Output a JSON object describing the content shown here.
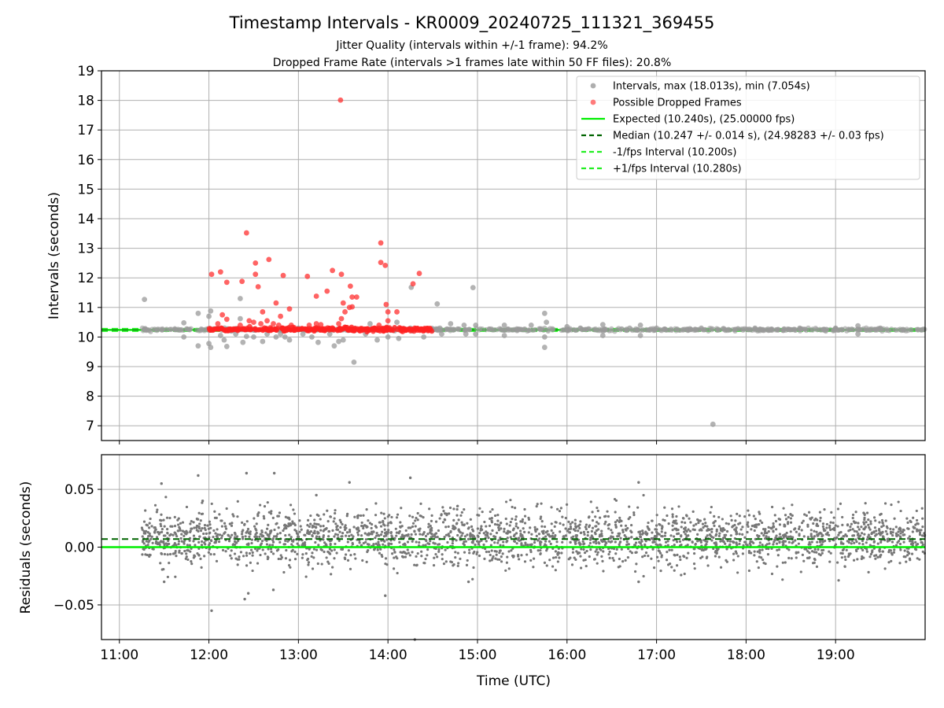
{
  "header": {
    "title": "Timestamp Intervals - KR0009_20240725_111321_369455",
    "subtitle1": "Jitter Quality (intervals within +/-1 frame): 94.2%",
    "subtitle2": "Dropped Frame Rate (intervals >1 frames late within 50 FF files): 20.8%"
  },
  "chart_data": [
    {
      "type": "scatter",
      "ylabel": "Intervals (seconds)",
      "xlabel": "",
      "x_unit": "UTC hours",
      "xlim": [
        10.8,
        20.0
      ],
      "ylim": [
        6.5,
        19.0
      ],
      "yticks": [
        7,
        8,
        9,
        10,
        11,
        12,
        13,
        14,
        15,
        16,
        17,
        18,
        19
      ],
      "grid": true,
      "legend_position": "top-right",
      "legend": [
        {
          "label": "Intervals, max (18.013s), min (7.054s)",
          "kind": "marker",
          "color": "#9a9a9a"
        },
        {
          "label": "Possible Dropped Frames",
          "kind": "marker",
          "color": "#ff5a5a"
        },
        {
          "label": "Expected (10.240s), (25.00000 fps)",
          "kind": "line-solid",
          "color": "#00ee00"
        },
        {
          "label": "Median (10.247 +/- 0.014 s), (24.98283 +/- 0.03 fps)",
          "kind": "line-dashed",
          "color": "#006400"
        },
        {
          "label": "-1/fps Interval (10.200s)",
          "kind": "line-dashed",
          "color": "#22ee22"
        },
        {
          "label": "+1/fps Interval (10.280s)",
          "kind": "line-dashed",
          "color": "#22ee22"
        }
      ],
      "reference_lines": {
        "expected": 10.24,
        "median": 10.247,
        "minus_1fps": 10.2,
        "plus_1fps": 10.28
      },
      "series": [
        {
          "name": "Intervals, max (18.013s), min (7.054s)",
          "color": "#9a9a9a",
          "points": [
            [
              11.28,
              11.27
            ],
            [
              11.72,
              10.48
            ],
            [
              11.72,
              10.0
            ],
            [
              11.88,
              10.8
            ],
            [
              11.88,
              9.7
            ],
            [
              12.0,
              10.7
            ],
            [
              12.02,
              10.88
            ],
            [
              12.0,
              9.78
            ],
            [
              12.02,
              9.65
            ],
            [
              12.1,
              10.3
            ],
            [
              12.13,
              10.05
            ],
            [
              12.17,
              9.9
            ],
            [
              12.2,
              9.68
            ],
            [
              12.25,
              10.2
            ],
            [
              12.3,
              10.1
            ],
            [
              12.35,
              11.3
            ],
            [
              12.35,
              10.62
            ],
            [
              12.38,
              9.82
            ],
            [
              12.42,
              10.02
            ],
            [
              12.5,
              10.0
            ],
            [
              12.6,
              9.85
            ],
            [
              12.65,
              10.1
            ],
            [
              12.75,
              10.0
            ],
            [
              12.8,
              10.1
            ],
            [
              12.85,
              10.0
            ],
            [
              12.9,
              9.9
            ],
            [
              13.0,
              10.3
            ],
            [
              13.05,
              10.1
            ],
            [
              13.15,
              10.0
            ],
            [
              13.22,
              9.82
            ],
            [
              13.35,
              10.1
            ],
            [
              13.4,
              9.7
            ],
            [
              13.45,
              9.85
            ],
            [
              13.5,
              9.9
            ],
            [
              13.62,
              9.15
            ],
            [
              13.75,
              10.1
            ],
            [
              13.8,
              10.45
            ],
            [
              13.88,
              9.9
            ],
            [
              14.0,
              10.0
            ],
            [
              14.1,
              10.5
            ],
            [
              14.12,
              9.95
            ],
            [
              14.25,
              10.3
            ],
            [
              14.26,
              11.68
            ],
            [
              14.4,
              10.0
            ],
            [
              14.55,
              11.12
            ],
            [
              14.58,
              10.3
            ],
            [
              14.6,
              10.1
            ],
            [
              14.7,
              10.45
            ],
            [
              14.85,
              10.4
            ],
            [
              14.87,
              10.1
            ],
            [
              14.95,
              11.67
            ],
            [
              14.98,
              10.4
            ],
            [
              14.98,
              10.1
            ],
            [
              15.3,
              10.4
            ],
            [
              15.3,
              10.05
            ],
            [
              15.6,
              10.4
            ],
            [
              15.75,
              10.8
            ],
            [
              15.77,
              10.5
            ],
            [
              15.75,
              10.0
            ],
            [
              15.75,
              9.65
            ],
            [
              16.0,
              10.35
            ],
            [
              16.15,
              10.3
            ],
            [
              16.4,
              10.42
            ],
            [
              16.4,
              10.05
            ],
            [
              16.7,
              10.3
            ],
            [
              16.82,
              10.4
            ],
            [
              16.82,
              10.05
            ],
            [
              17.0,
              10.3
            ],
            [
              17.5,
              10.3
            ],
            [
              17.63,
              7.05
            ],
            [
              18.1,
              10.3
            ],
            [
              18.6,
              10.3
            ],
            [
              19.0,
              10.3
            ],
            [
              19.25,
              10.38
            ],
            [
              19.25,
              10.1
            ],
            [
              19.5,
              10.3
            ]
          ]
        },
        {
          "name": "Possible Dropped Frames",
          "color": "#ff2020",
          "points": [
            [
              12.03,
              12.12
            ],
            [
              12.13,
              12.2
            ],
            [
              12.2,
              11.85
            ],
            [
              12.37,
              11.88
            ],
            [
              12.42,
              13.52
            ],
            [
              12.52,
              12.5
            ],
            [
              12.52,
              12.12
            ],
            [
              12.55,
              11.7
            ],
            [
              12.6,
              10.85
            ],
            [
              12.67,
              12.62
            ],
            [
              12.75,
              11.15
            ],
            [
              12.8,
              10.7
            ],
            [
              12.83,
              12.08
            ],
            [
              12.9,
              10.95
            ],
            [
              12.65,
              10.55
            ],
            [
              12.5,
              10.5
            ],
            [
              12.45,
              10.55
            ],
            [
              12.2,
              10.6
            ],
            [
              12.15,
              10.75
            ],
            [
              12.1,
              10.45
            ],
            [
              12.35,
              10.4
            ],
            [
              12.58,
              10.45
            ],
            [
              12.72,
              10.45
            ],
            [
              12.78,
              10.4
            ],
            [
              12.92,
              10.4
            ],
            [
              13.1,
              12.05
            ],
            [
              13.2,
              11.38
            ],
            [
              13.32,
              11.55
            ],
            [
              13.38,
              12.25
            ],
            [
              13.45,
              10.45
            ],
            [
              13.47,
              18.01
            ],
            [
              13.48,
              12.12
            ],
            [
              13.5,
              11.15
            ],
            [
              13.52,
              10.85
            ],
            [
              13.48,
              10.62
            ],
            [
              13.57,
              11.0
            ],
            [
              13.58,
              11.72
            ],
            [
              13.6,
              11.35
            ],
            [
              13.6,
              11.02
            ],
            [
              13.65,
              11.35
            ],
            [
              13.92,
              13.18
            ],
            [
              13.92,
              12.52
            ],
            [
              13.97,
              12.42
            ],
            [
              13.98,
              11.1
            ],
            [
              14.0,
              10.85
            ],
            [
              14.0,
              10.55
            ],
            [
              14.1,
              10.85
            ],
            [
              14.28,
              11.8
            ],
            [
              14.35,
              12.15
            ],
            [
              13.2,
              10.45
            ],
            [
              13.25,
              10.42
            ],
            [
              13.12,
              10.4
            ],
            [
              13.9,
              10.4
            ]
          ]
        },
        {
          "name": "dense-band",
          "band": true,
          "x_range": [
            12.0,
            14.5
          ],
          "y_range": [
            10.2,
            10.32
          ],
          "color": "#ff2020"
        },
        {
          "name": "dense-band-normal",
          "band": true,
          "x_range": [
            11.25,
            20.0
          ],
          "y_range": [
            10.2,
            10.3
          ],
          "color": "#22ee22"
        }
      ]
    },
    {
      "type": "scatter",
      "ylabel": "Residuals (seconds)",
      "xlabel": "Time (UTC)",
      "x_unit": "UTC hours",
      "xlim": [
        10.8,
        20.0
      ],
      "ylim": [
        -0.08,
        0.08
      ],
      "yticks": [
        -0.05,
        0.0,
        0.05
      ],
      "ytick_labels": [
        "−0.05",
        "0.00",
        "0.05"
      ],
      "xticks": [
        11,
        12,
        13,
        14,
        15,
        16,
        17,
        18,
        19
      ],
      "xtick_labels": [
        "11:00",
        "12:00",
        "13:00",
        "14:00",
        "15:00",
        "16:00",
        "17:00",
        "18:00",
        "19:00"
      ],
      "grid": true,
      "reference_lines": {
        "expected": 0.0,
        "median": 0.007
      },
      "series": [
        {
          "name": "residuals",
          "color": "#777777",
          "x_range": [
            11.25,
            20.0
          ],
          "band_center": 0.008,
          "band_spread": 0.017,
          "outliers": [
            [
              11.47,
              0.055
            ],
            [
              11.88,
              0.062
            ],
            [
              12.03,
              -0.055
            ],
            [
              12.4,
              -0.045
            ],
            [
              12.42,
              0.064
            ],
            [
              12.44,
              -0.04
            ],
            [
              12.73,
              0.064
            ],
            [
              12.72,
              -0.037
            ],
            [
              13.57,
              0.056
            ],
            [
              14.25,
              0.06
            ],
            [
              13.97,
              -0.042
            ],
            [
              14.3,
              -0.08
            ],
            [
              16.8,
              0.056
            ],
            [
              16.8,
              -0.03
            ],
            [
              11.5,
              -0.03
            ],
            [
              11.93,
              0.04
            ],
            [
              13.2,
              0.045
            ],
            [
              14.9,
              -0.03
            ]
          ]
        }
      ]
    }
  ]
}
